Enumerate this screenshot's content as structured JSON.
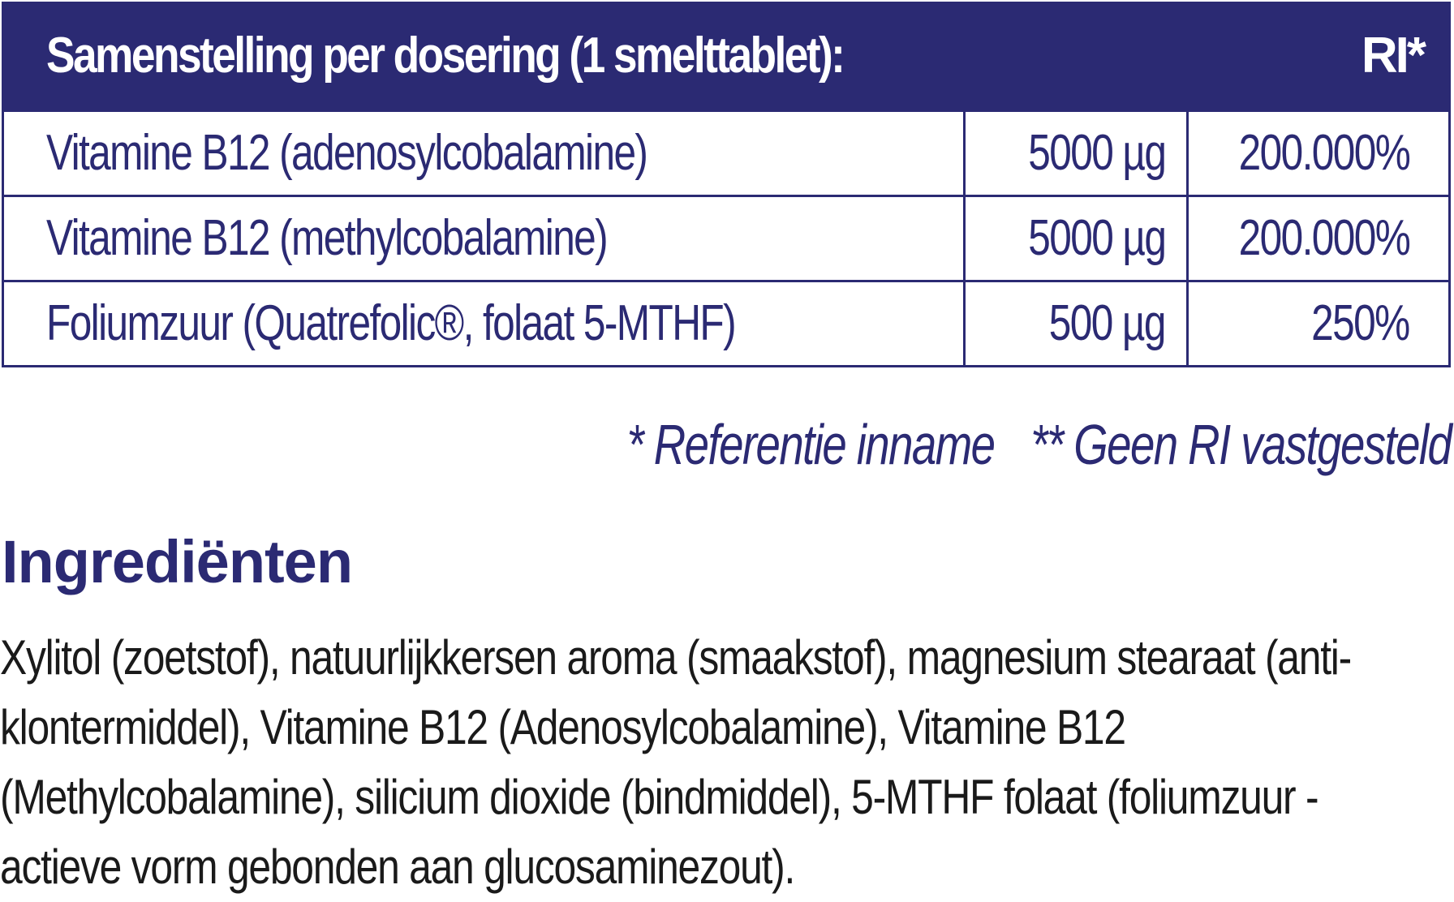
{
  "table": {
    "header_title": "Samenstelling per dosering (1 smelttablet):",
    "header_ri": "RI*",
    "rows": [
      {
        "name": "Vitamine B12 (adenosylcobalamine)",
        "amount": "5000 µg",
        "ri": "200.000%"
      },
      {
        "name": "Vitamine B12 (methylcobalamine)",
        "amount": "5000 µg",
        "ri": "200.000%"
      },
      {
        "name": "Foliumzuur (Quatrefolic®, folaat 5-MTHF)",
        "amount": "500 µg",
        "ri": "250%"
      }
    ]
  },
  "footnotes": {
    "ri": "* Referentie inname",
    "no_ri": "** Geen RI vastgesteld"
  },
  "ingredients": {
    "title": "Ingrediënten",
    "text": "Xylitol (zoetstof), natuurlijkkersen aroma (smaakstof), magnesium stearaat (anti-klontermiddel), Vitamine B12 (Adenosylcobalamine), Vitamine B12 (Methylcobalamine),  silicium dioxide (bindmiddel), 5-MTHF folaat (foliumzuur - actieve vorm gebonden aan glucosaminezout)."
  },
  "colors": {
    "brand": "#2b2a73",
    "text": "#1a1a1a"
  }
}
